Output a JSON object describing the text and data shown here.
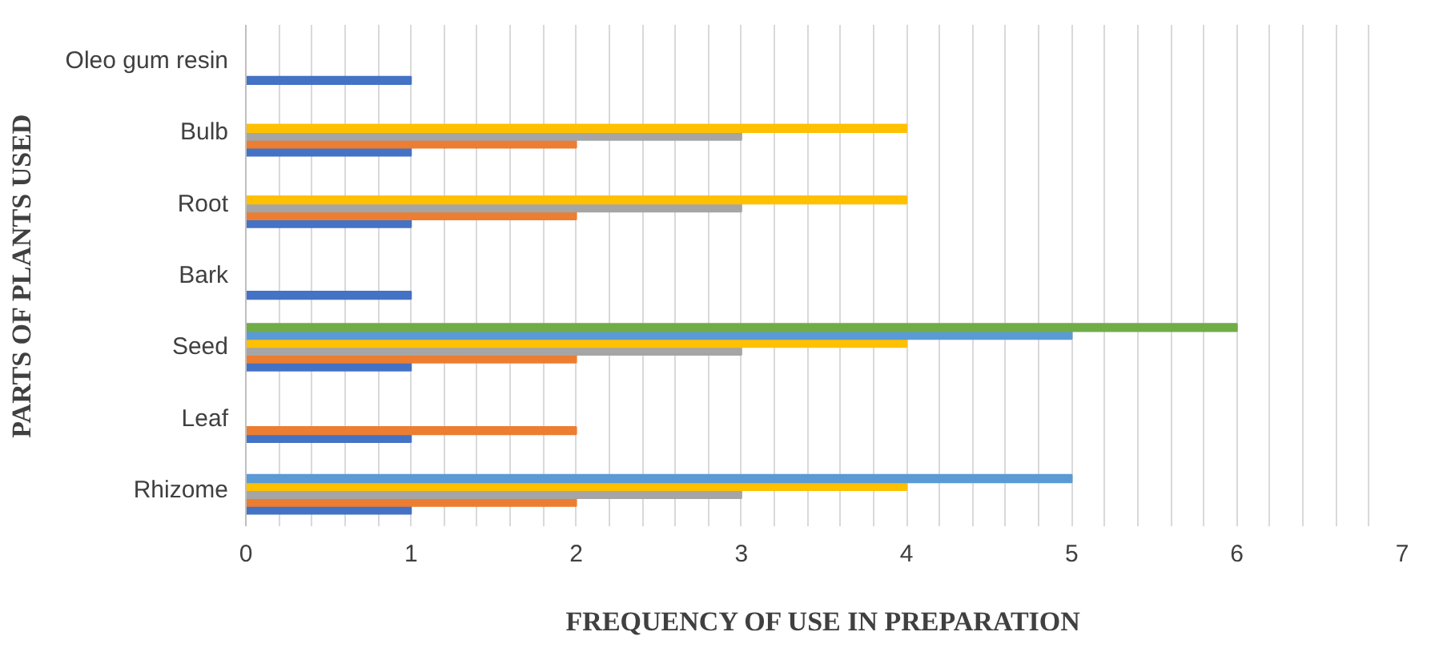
{
  "chart_data": {
    "type": "bar",
    "orientation": "horizontal",
    "xlabel": "FREQUENCY OF USE IN PREPARATION",
    "ylabel": "PARTS OF PLANTS USED",
    "categories": [
      "Oleo gum resin",
      "Bulb",
      "Root",
      "Bark",
      "Seed",
      "Leaf",
      "Rhizome"
    ],
    "series": [
      {
        "color": "#4472c4",
        "values": [
          1,
          1,
          1,
          1,
          1,
          1,
          1
        ]
      },
      {
        "color": "#ed7d31",
        "values": [
          null,
          2,
          2,
          null,
          2,
          2,
          2
        ]
      },
      {
        "color": "#a5a5a5",
        "values": [
          null,
          3,
          3,
          null,
          3,
          null,
          3
        ]
      },
      {
        "color": "#ffc000",
        "values": [
          null,
          4,
          4,
          null,
          4,
          null,
          4
        ]
      },
      {
        "color": "#5b9bd5",
        "values": [
          null,
          null,
          null,
          null,
          5,
          null,
          5
        ]
      },
      {
        "color": "#70ad47",
        "values": [
          null,
          null,
          null,
          null,
          6,
          null,
          null
        ]
      }
    ],
    "xlim": [
      0,
      7
    ],
    "xticks": [
      0,
      {
        "value": 0.2,
        "label": null
      },
      {
        "value": 0.4,
        "label": null
      },
      {
        "value": 0.6,
        "label": null
      },
      {
        "value": 0.8,
        "label": null
      },
      1,
      {
        "value": 1.2,
        "label": null
      },
      {
        "value": 1.4,
        "label": null
      },
      {
        "value": 1.6,
        "label": null
      },
      {
        "value": 1.8,
        "label": null
      },
      2,
      {
        "value": 2.2,
        "label": null
      },
      {
        "value": 2.4,
        "label": null
      },
      {
        "value": 2.6,
        "label": null
      },
      {
        "value": 2.8,
        "label": null
      },
      3,
      {
        "value": 3.2,
        "label": null
      },
      {
        "value": 3.4,
        "label": null
      },
      {
        "value": 3.6,
        "label": null
      },
      {
        "value": 3.8,
        "label": null
      },
      4,
      {
        "value": 4.2,
        "label": null
      },
      {
        "value": 4.4,
        "label": null
      },
      {
        "value": 4.6,
        "label": null
      },
      {
        "value": 4.8,
        "label": null
      },
      5,
      {
        "value": 5.2,
        "label": null
      },
      {
        "value": 5.4,
        "label": null
      },
      {
        "value": 5.6,
        "label": null
      },
      {
        "value": 5.8,
        "label": null
      },
      6,
      {
        "value": 6.2,
        "label": null
      },
      {
        "value": 6.4,
        "label": null
      },
      {
        "value": 6.6,
        "label": null
      },
      {
        "value": 6.8,
        "label": null
      },
      7
    ],
    "grid": "x"
  }
}
